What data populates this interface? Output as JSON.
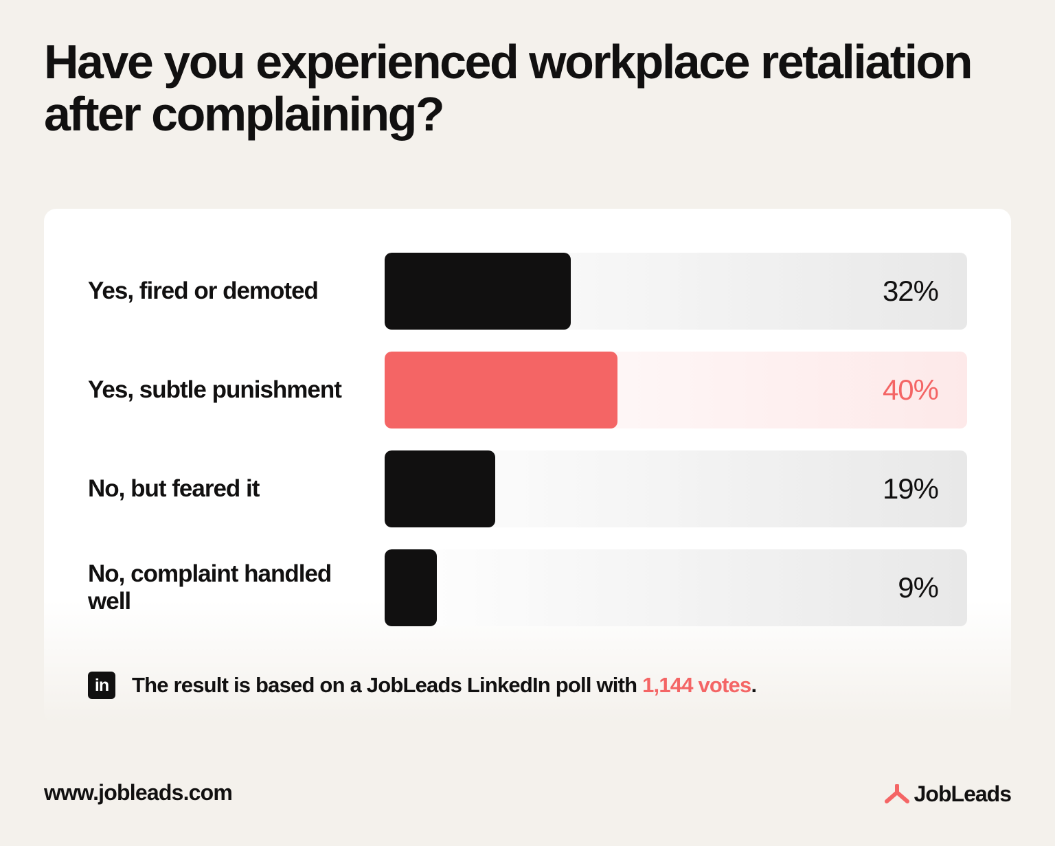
{
  "title": "Have you experienced workplace retaliation after complaining?",
  "chart_data": {
    "type": "bar",
    "orientation": "horizontal",
    "categories": [
      "Yes, fired or demoted",
      "Yes, subtle punishment",
      "No, but feared it",
      "No, complaint handled well"
    ],
    "values": [
      32,
      40,
      19,
      9
    ],
    "value_labels": [
      "32%",
      "40%",
      "19%",
      "9%"
    ],
    "highlighted_index": 1,
    "xlim": [
      0,
      100
    ],
    "grid": false,
    "title": "Have you experienced workplace retaliation after complaining?"
  },
  "colors": {
    "bar": "#111010",
    "accent": "#f46565",
    "background": "#f4f1ec",
    "card": "#ffffff"
  },
  "footnote": {
    "icon": "linkedin-icon",
    "icon_text": "in",
    "text_before": "The result is based on a JobLeads LinkedIn poll with ",
    "highlight": "1,144 votes",
    "text_after": "."
  },
  "footer": {
    "url": "www.jobleads.com",
    "brand": "JobLeads",
    "brand_icon": "jobleads-logo-icon"
  }
}
